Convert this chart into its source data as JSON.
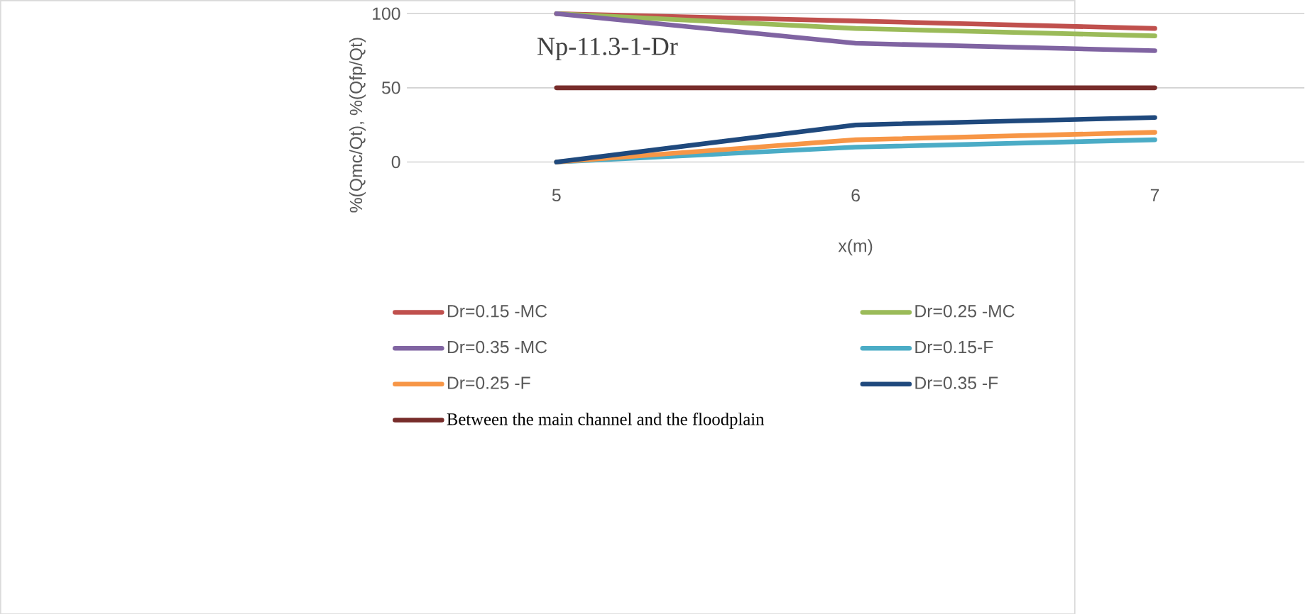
{
  "chart_data": {
    "type": "line",
    "title": "Np-11.3-1-Dr",
    "xlabel": "x(m)",
    "ylabel": "%(Qmc/Qt), %(Qfp/Qt)",
    "categories": [
      "5",
      "6",
      "7"
    ],
    "series": [
      {
        "name": "Dr=0.15 -MC",
        "color": "#c0504d",
        "values": [
          100,
          95,
          90
        ]
      },
      {
        "name": "Dr=0.25 -MC",
        "color": "#9bbb59",
        "values": [
          100,
          90,
          85
        ]
      },
      {
        "name": "Dr=0.35 -MC",
        "color": "#8064a2",
        "values": [
          100,
          80,
          75
        ]
      },
      {
        "name": "Dr=0.15-F",
        "color": "#4bacc6",
        "values": [
          0,
          10,
          15
        ]
      },
      {
        "name": "Dr=0.25 -F",
        "color": "#f79646",
        "values": [
          0,
          15,
          20
        ]
      },
      {
        "name": "Dr=0.35 -F",
        "color": "#1f497d",
        "values": [
          0,
          25,
          30
        ]
      },
      {
        "name": "Between the main channel and the floodplain",
        "color": "#772c2a",
        "values": [
          50,
          50,
          50
        ]
      }
    ],
    "ylim": [
      0,
      100
    ],
    "yticks": [
      0,
      50,
      100
    ],
    "grid": "y",
    "legend": "bottom",
    "marker": "none",
    "line_style": "solid"
  }
}
